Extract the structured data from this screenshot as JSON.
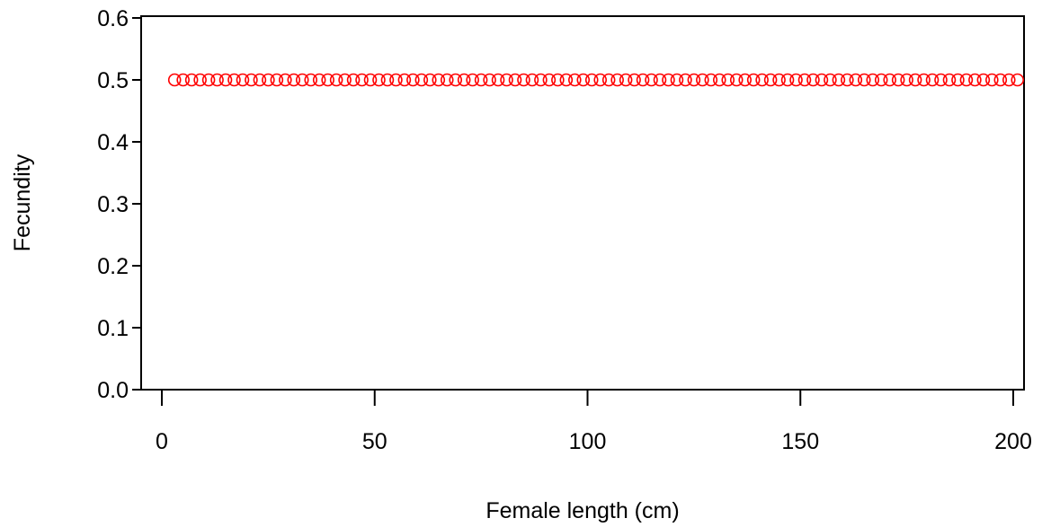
{
  "chart_data": {
    "type": "scatter",
    "title": "",
    "xlabel": "Female length (cm)",
    "ylabel": "Fecundity",
    "xlim": [
      -2,
      206
    ],
    "ylim": [
      0,
      0.6
    ],
    "x_ticks": [
      0,
      50,
      100,
      150,
      200
    ],
    "x_tick_labels": [
      "0",
      "50",
      "100",
      "150",
      "200"
    ],
    "y_ticks": [
      0.0,
      0.1,
      0.2,
      0.3,
      0.4,
      0.5,
      0.6
    ],
    "y_tick_labels": [
      "0.0",
      "0.1",
      "0.2",
      "0.3",
      "0.4",
      "0.5",
      "0.6"
    ],
    "grid": false,
    "series": [
      {
        "color": "#ff0000",
        "marker": "open-circle",
        "points": {
          "x": [
            3,
            5,
            7,
            9,
            11,
            13,
            15,
            17,
            19,
            21,
            23,
            25,
            27,
            29,
            31,
            33,
            35,
            37,
            39,
            41,
            43,
            45,
            47,
            49,
            51,
            53,
            55,
            57,
            59,
            61,
            63,
            65,
            67,
            69,
            71,
            73,
            75,
            77,
            79,
            81,
            83,
            85,
            87,
            89,
            91,
            93,
            95,
            97,
            99,
            101,
            103,
            105,
            107,
            109,
            111,
            113,
            115,
            117,
            119,
            121,
            123,
            125,
            127,
            129,
            131,
            133,
            135,
            137,
            139,
            141,
            143,
            145,
            147,
            149,
            151,
            153,
            155,
            157,
            159,
            161,
            163,
            165,
            167,
            169,
            171,
            173,
            175,
            177,
            179,
            181,
            183,
            185,
            187,
            189,
            191,
            193,
            195,
            197,
            199,
            201
          ],
          "y_constant": 0.5
        }
      }
    ]
  }
}
